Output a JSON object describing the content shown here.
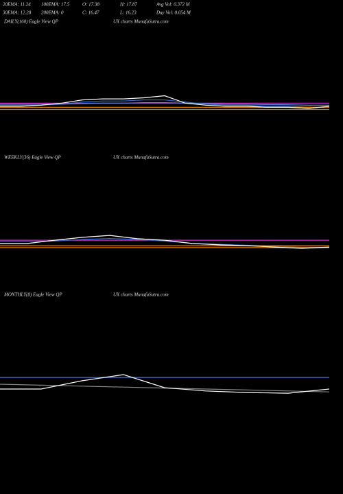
{
  "header": {
    "rows": [
      [
        "20EMA: 11.24",
        "100EMA: 17.5",
        "O: 17.38",
        "H: 17.87",
        "Avg Vol: 0.372  M"
      ],
      [
        "30EMA: 12.28",
        "200EMA: 0",
        "C: 16.47",
        "L: 16.23",
        "Day Vol: 0.054  M"
      ]
    ]
  },
  "chart_data": [
    {
      "type": "line",
      "title": "DAILY(160) Eagle  View  QP",
      "subtitle": "UX  charts MunafaSutra.com",
      "x": [
        0,
        10,
        20,
        30,
        40,
        50,
        60,
        70,
        80,
        90,
        100,
        110,
        120,
        130,
        140,
        150,
        160
      ],
      "ylim": [
        10,
        16
      ],
      "series": [
        {
          "color": "#cc33cc",
          "values": [
            12.1,
            12.1,
            12.1,
            12.1,
            12.1,
            12.1,
            12.1,
            12.1,
            12.1,
            12.1,
            12.1,
            12.1,
            12.1,
            12.1,
            12.1,
            12.1,
            12.1
          ]
        },
        {
          "color": "#3366cc",
          "values": [
            12.0,
            12.0,
            12.0,
            12.05,
            12.15,
            12.2,
            12.2,
            12.25,
            12.25,
            12.15,
            12.05,
            12.0,
            12.0,
            11.95,
            11.95,
            11.9,
            11.9
          ]
        },
        {
          "color": "#5a8ae0",
          "values": [
            12.05,
            12.05,
            12.05,
            12.05,
            12.08,
            12.1,
            12.1,
            12.12,
            12.12,
            12.1,
            12.08,
            12.05,
            12.05,
            12.03,
            12.02,
            12.0,
            12.0
          ]
        },
        {
          "color": "#e07b00",
          "values": [
            11.9,
            11.9,
            11.9,
            11.9,
            11.9,
            11.9,
            11.9,
            11.9,
            11.9,
            11.9,
            11.9,
            11.9,
            11.9,
            11.9,
            11.9,
            11.9,
            11.9
          ]
        },
        {
          "color": "#e07b00",
          "values": [
            11.8,
            11.8,
            11.8,
            11.8,
            11.8,
            11.8,
            11.8,
            11.8,
            11.8,
            11.8,
            11.8,
            11.8,
            11.8,
            11.8,
            11.8,
            11.8,
            11.8
          ]
        },
        {
          "color": "#ffffff",
          "values": [
            11.95,
            11.95,
            12.0,
            12.1,
            12.25,
            12.3,
            12.3,
            12.35,
            12.45,
            12.1,
            12.0,
            11.95,
            11.95,
            11.9,
            11.9,
            11.85,
            11.95
          ]
        }
      ]
    },
    {
      "type": "line",
      "title": "WEEKLY(36) Eagle  View  QP",
      "subtitle": "UX  charts MunafaSutra.com",
      "x": [
        0,
        3,
        6,
        9,
        12,
        15,
        18,
        21,
        24,
        27,
        30,
        33,
        36
      ],
      "ylim": [
        10,
        16
      ],
      "series": [
        {
          "color": "#cc33cc",
          "values": [
            11.76,
            11.76,
            11.76,
            11.76,
            11.76,
            11.76,
            11.76,
            11.76,
            11.76,
            11.76,
            11.76,
            11.76,
            11.76
          ]
        },
        {
          "color": "#3366cc",
          "values": [
            11.7,
            11.7,
            11.72,
            11.8,
            11.85,
            11.8,
            11.72,
            11.6,
            11.55,
            11.5,
            11.45,
            11.4,
            11.4
          ]
        },
        {
          "color": "#e07b00",
          "values": [
            11.48,
            11.48,
            11.48,
            11.48,
            11.48,
            11.48,
            11.48,
            11.48,
            11.48,
            11.48,
            11.48,
            11.48,
            11.48
          ]
        },
        {
          "color": "#e07b00",
          "values": [
            11.38,
            11.38,
            11.38,
            11.38,
            11.38,
            11.38,
            11.38,
            11.38,
            11.38,
            11.38,
            11.38,
            11.38,
            11.38
          ]
        },
        {
          "color": "#ffffff",
          "values": [
            11.59,
            11.59,
            11.76,
            11.91,
            12.01,
            11.84,
            11.76,
            11.59,
            11.52,
            11.48,
            11.41,
            11.34,
            11.41
          ]
        }
      ]
    },
    {
      "type": "line",
      "title": "MONTHLY(8) Eagle  View  QP",
      "subtitle": "UX  charts MunafaSutra.com",
      "x": [
        0,
        1,
        2,
        3,
        4,
        5,
        6,
        7,
        8
      ],
      "ylim": [
        10,
        16
      ],
      "series": [
        {
          "color": "#4a7bd6",
          "values": [
            13.21,
            13.21,
            13.21,
            13.21,
            13.21,
            13.21,
            13.21,
            13.21,
            13.21
          ]
        },
        {
          "color": "#888888",
          "values": [
            13.0,
            12.97,
            12.94,
            12.91,
            12.88,
            12.85,
            12.82,
            12.79,
            12.76
          ]
        },
        {
          "color": "#ffffff",
          "values": [
            12.85,
            12.85,
            13.11,
            13.3,
            12.89,
            12.79,
            12.74,
            12.72,
            12.85
          ]
        }
      ]
    }
  ]
}
